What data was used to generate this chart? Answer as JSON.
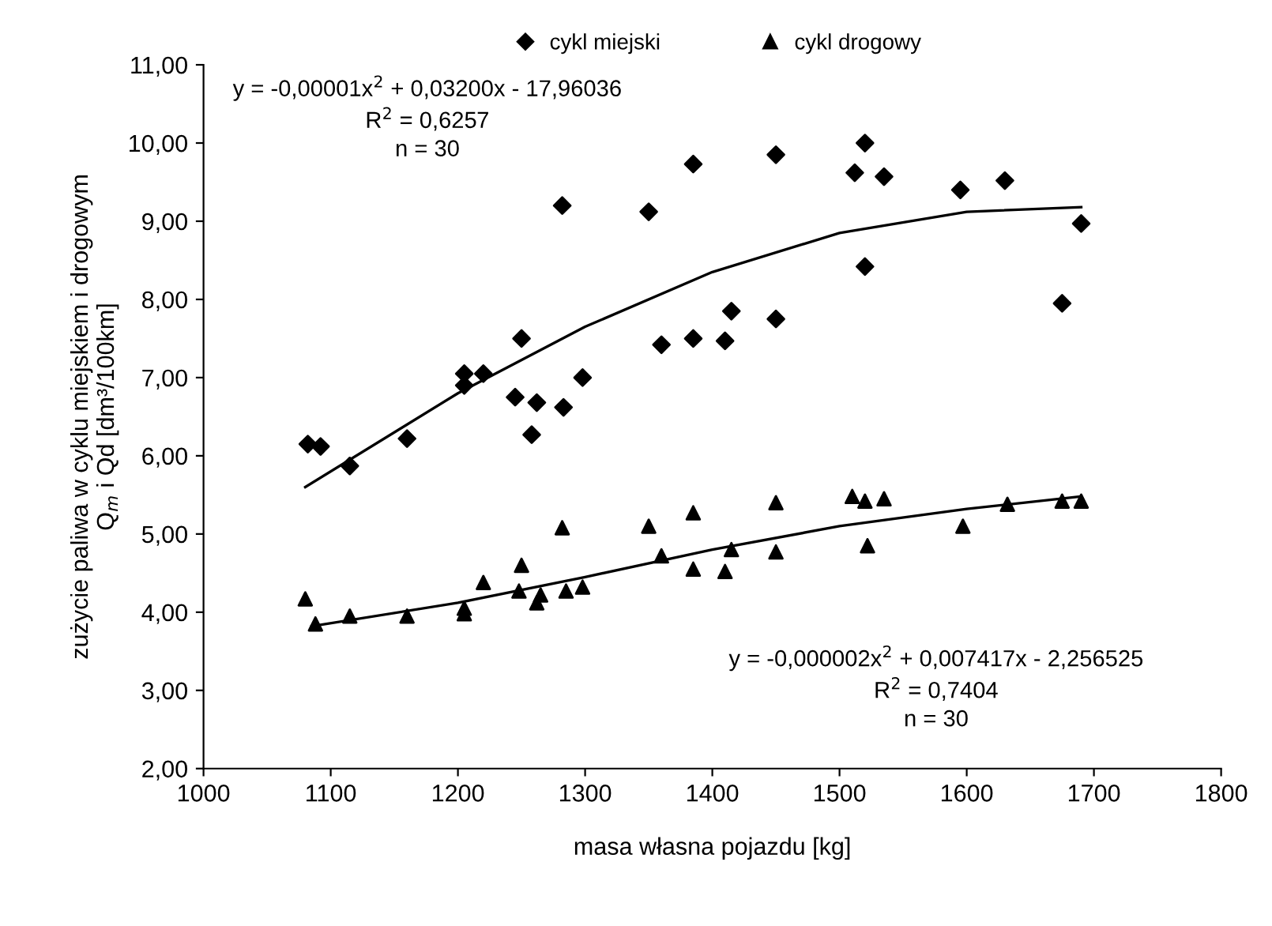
{
  "chart_data": {
    "type": "scatter",
    "xlabel": "masa własna pojazdu [kg]",
    "ylabel": "zużycie paliwa w cyklu miejskiem i drogowym\nQ$_{m}$ i Qd [dm³/100km]",
    "xlim": [
      1000,
      1800
    ],
    "xticks": [
      1000,
      1100,
      1200,
      1300,
      1400,
      1500,
      1600,
      1700,
      1800
    ],
    "ylim": [
      2,
      11
    ],
    "yticks": [
      {
        "value": 2,
        "label": "2,00"
      },
      {
        "value": 3,
        "label": "3,00"
      },
      {
        "value": 4,
        "label": "4,00"
      },
      {
        "value": 5,
        "label": "5,00"
      },
      {
        "value": 6,
        "label": "6,00"
      },
      {
        "value": 7,
        "label": "7,00"
      },
      {
        "value": 8,
        "label": "8,00"
      },
      {
        "value": 9,
        "label": "9,00"
      },
      {
        "value": 10,
        "label": "10,00"
      },
      {
        "value": 11,
        "label": "11,00"
      }
    ],
    "grid": false,
    "legend": "top",
    "annotations": [
      "y = -0,00001x$^{2}$ + 0,03200x - 17,96036\nR$^{2}$ = 0,6257\nn = 30",
      "y = -0,000002x$^{2}$ + 0,007417x - 2,256525\nR$^{2}$ = 0,7404\nn = 30"
    ],
    "series": [
      {
        "name": "cykl miejski",
        "color": "#000000",
        "marker": "diamond",
        "x": [
          1082,
          1092,
          1115,
          1160,
          1205,
          1205,
          1220,
          1245,
          1250,
          1258,
          1262,
          1282,
          1283,
          1298,
          1350,
          1360,
          1385,
          1385,
          1410,
          1415,
          1450,
          1450,
          1512,
          1520,
          1520,
          1535,
          1595,
          1630,
          1675,
          1690
        ],
        "values": [
          6.15,
          6.12,
          5.87,
          6.22,
          7.05,
          6.9,
          7.05,
          6.75,
          7.5,
          6.27,
          6.68,
          9.2,
          6.62,
          7.0,
          9.12,
          7.42,
          9.73,
          7.5,
          7.47,
          7.85,
          9.85,
          7.75,
          9.62,
          10.0,
          8.42,
          9.57,
          9.4,
          9.52,
          7.95,
          8.97
        ]
      },
      {
        "name": "cykl drogowy",
        "color": "#000000",
        "marker": "triangle",
        "x": [
          1080,
          1088,
          1115,
          1160,
          1205,
          1205,
          1220,
          1248,
          1250,
          1262,
          1265,
          1282,
          1285,
          1298,
          1350,
          1360,
          1385,
          1385,
          1410,
          1415,
          1450,
          1450,
          1510,
          1520,
          1522,
          1535,
          1597,
          1632,
          1675,
          1690
        ],
        "values": [
          4.17,
          3.85,
          3.95,
          3.95,
          4.05,
          3.98,
          4.38,
          4.27,
          4.6,
          4.12,
          4.22,
          5.08,
          4.27,
          4.32,
          5.1,
          4.72,
          5.27,
          4.55,
          4.52,
          4.8,
          5.4,
          4.77,
          5.48,
          5.42,
          4.85,
          5.45,
          5.1,
          5.38,
          5.42,
          5.42
        ]
      },
      {
        "type": "line",
        "color": "#000000",
        "x": [
          1080,
          1200,
          1300,
          1400,
          1500,
          1600,
          1690
        ],
        "values": [
          5.6,
          6.8,
          7.65,
          8.35,
          8.85,
          9.12,
          9.18
        ]
      },
      {
        "type": "line",
        "color": "#000000",
        "x": [
          1085,
          1200,
          1300,
          1400,
          1500,
          1600,
          1690
        ],
        "values": [
          3.82,
          4.12,
          4.45,
          4.8,
          5.1,
          5.32,
          5.48
        ]
      }
    ]
  }
}
